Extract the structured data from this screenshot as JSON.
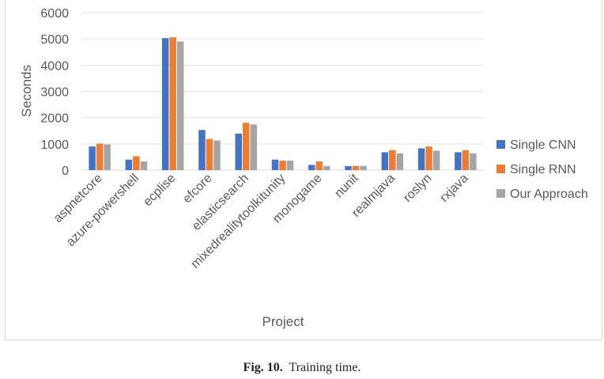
{
  "caption": {
    "label": "Fig. 10.",
    "text": "Training time."
  },
  "chart_data": {
    "type": "bar",
    "title": "",
    "xlabel": "Project",
    "ylabel": "Seconds",
    "ylim": [
      0,
      6000
    ],
    "yticks": [
      0,
      1000,
      2000,
      3000,
      4000,
      5000,
      6000
    ],
    "ytick_labels": [
      "0",
      "1000",
      "2000",
      "3000",
      "4000",
      "5000",
      "6000"
    ],
    "grid": "horizontal",
    "legend_position": "right",
    "categories": [
      "aspnetcore",
      "azure-powershell",
      "ecplise",
      "efcore",
      "elasticsearch",
      "mixedrealitytoolkitunity",
      "monogame",
      "nunit",
      "realmjava",
      "roslyn",
      "rxjava"
    ],
    "series": [
      {
        "name": "Single CNN",
        "color": "#4472c4",
        "values": [
          900,
          400,
          5030,
          1530,
          1390,
          400,
          200,
          150,
          680,
          830,
          680
        ]
      },
      {
        "name": "Single RNN",
        "color": "#ed7d31",
        "values": [
          1010,
          530,
          5060,
          1190,
          1800,
          360,
          330,
          160,
          760,
          900,
          760
        ]
      },
      {
        "name": "Our Approach",
        "color": "#a5a5a5",
        "values": [
          980,
          330,
          4900,
          1130,
          1740,
          360,
          160,
          160,
          640,
          740,
          640
        ]
      }
    ]
  }
}
